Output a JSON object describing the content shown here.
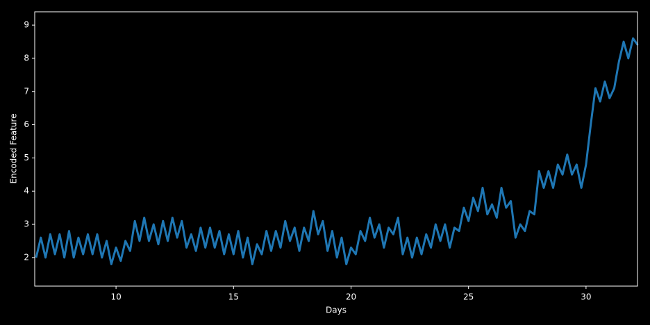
{
  "chart_data": {
    "type": "line",
    "xlabel": "Days",
    "ylabel": "Encoded Feature",
    "xlim": [
      6.54,
      32.19
    ],
    "ylim": [
      1.14,
      9.4
    ],
    "xticks": [
      10,
      15,
      20,
      25,
      30
    ],
    "yticks": [
      2,
      3,
      4,
      5,
      6,
      7,
      8,
      9
    ],
    "x": [
      6.6,
      6.8,
      7.0,
      7.2,
      7.4,
      7.6,
      7.8,
      8.0,
      8.2,
      8.4,
      8.6,
      8.8,
      9.0,
      9.2,
      9.4,
      9.6,
      9.8,
      10.0,
      10.2,
      10.4,
      10.6,
      10.8,
      11.0,
      11.2,
      11.4,
      11.6,
      11.8,
      12.0,
      12.2,
      12.4,
      12.6,
      12.8,
      13.0,
      13.2,
      13.4,
      13.6,
      13.8,
      14.0,
      14.2,
      14.4,
      14.6,
      14.8,
      15.0,
      15.2,
      15.4,
      15.6,
      15.8,
      16.0,
      16.2,
      16.4,
      16.6,
      16.8,
      17.0,
      17.2,
      17.4,
      17.6,
      17.8,
      18.0,
      18.2,
      18.4,
      18.6,
      18.8,
      19.0,
      19.2,
      19.4,
      19.6,
      19.8,
      20.0,
      20.2,
      20.4,
      20.6,
      20.8,
      21.0,
      21.2,
      21.4,
      21.6,
      21.8,
      22.0,
      22.2,
      22.4,
      22.6,
      22.8,
      23.0,
      23.2,
      23.4,
      23.6,
      23.8,
      24.0,
      24.2,
      24.4,
      24.6,
      24.8,
      25.0,
      25.2,
      25.4,
      25.6,
      25.8,
      26.0,
      26.2,
      26.4,
      26.6,
      26.8,
      27.0,
      27.2,
      27.4,
      27.6,
      27.8,
      28.0,
      28.2,
      28.4,
      28.6,
      28.8,
      29.0,
      29.2,
      29.4,
      29.6,
      29.8,
      30.0,
      30.2,
      30.4,
      30.6,
      30.8,
      31.0,
      31.2,
      31.4,
      31.6,
      31.8,
      32.0,
      32.2
    ],
    "series": [
      {
        "color": "#1f77b4",
        "values": [
          2.0,
          2.6,
          2.0,
          2.7,
          2.1,
          2.7,
          2.0,
          2.8,
          2.0,
          2.6,
          2.1,
          2.7,
          2.1,
          2.7,
          2.0,
          2.5,
          1.8,
          2.3,
          1.9,
          2.5,
          2.2,
          3.1,
          2.5,
          3.2,
          2.5,
          3.0,
          2.4,
          3.1,
          2.5,
          3.2,
          2.6,
          3.1,
          2.3,
          2.7,
          2.2,
          2.9,
          2.3,
          2.9,
          2.3,
          2.8,
          2.1,
          2.7,
          2.1,
          2.8,
          2.0,
          2.6,
          1.8,
          2.4,
          2.1,
          2.8,
          2.2,
          2.8,
          2.3,
          3.1,
          2.5,
          2.9,
          2.2,
          2.9,
          2.5,
          3.4,
          2.7,
          3.1,
          2.2,
          2.8,
          2.0,
          2.6,
          1.8,
          2.3,
          2.1,
          2.8,
          2.5,
          3.2,
          2.6,
          3.0,
          2.3,
          2.9,
          2.7,
          3.2,
          2.1,
          2.6,
          2.0,
          2.6,
          2.1,
          2.7,
          2.3,
          3.0,
          2.5,
          3.0,
          2.3,
          2.9,
          2.8,
          3.5,
          3.1,
          3.8,
          3.4,
          4.1,
          3.3,
          3.6,
          3.2,
          4.1,
          3.5,
          3.7,
          2.6,
          3.0,
          2.8,
          3.4,
          3.3,
          4.6,
          4.1,
          4.6,
          4.1,
          4.8,
          4.5,
          5.1,
          4.5,
          4.8,
          4.1,
          4.8,
          6.0,
          7.1,
          6.7,
          7.3,
          6.8,
          7.1,
          7.9,
          8.5,
          8.0,
          8.6,
          8.4
        ]
      }
    ]
  }
}
